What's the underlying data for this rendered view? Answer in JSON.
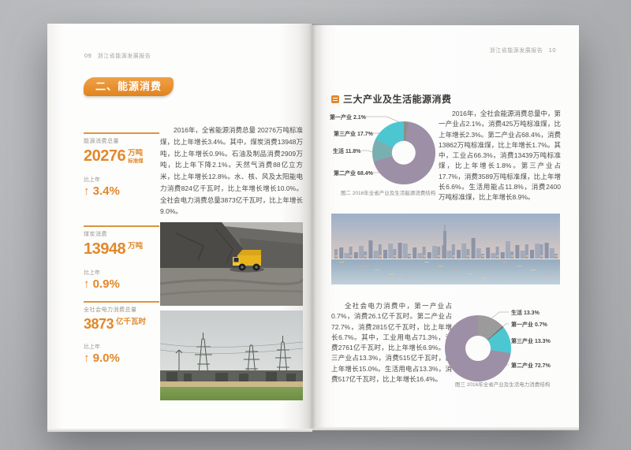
{
  "colors": {
    "accent_orange": "#e2882a",
    "donut_purple": "#9d8fa5",
    "donut_cyan": "#4cc7d2",
    "donut_teal_gray": "#7aafb2",
    "donut_gray": "#9b9b9b"
  },
  "left_page": {
    "header": {
      "page_num": "09",
      "title": "浙江省能源发展报告"
    },
    "section_badge": "二、能源消费",
    "stats": [
      {
        "label": "能源消费总量",
        "value": "20276",
        "unit": "万吨",
        "unit_sub": "标准煤",
        "change_label": "比上年",
        "arrow": "↑",
        "change": "3.4%"
      },
      {
        "label": "煤炭消费",
        "value": "13948",
        "unit": "万吨",
        "unit_sub": "",
        "change_label": "比上年",
        "arrow": "↑",
        "change": "0.9%"
      },
      {
        "label": "全社会电力消费总量",
        "value": "3873",
        "unit": "亿千瓦时",
        "unit_sub": "",
        "change_label": "比上年",
        "arrow": "↑",
        "change": "9.0%"
      }
    ],
    "paragraph": "2016年，全省能源消费总量 20276万吨标准煤，比上年增长3.4%。其中，煤炭消费13948万吨，比上年增长0.9%。石油及制品消费2909万吨，比上年下降2.1%。天然气消费88亿立方米，比上年增长12.8%。水、核、风及太阳能电力消费824亿千瓦时，比上年增长增长10.0%。全社会电力消费总量3873亿千瓦时，比上年增长9.0%。",
    "photos": [
      {
        "name": "coal-mine-dump-truck"
      },
      {
        "name": "power-transmission-substation"
      }
    ]
  },
  "right_page": {
    "header": {
      "title": "浙江省能源发展报告",
      "page_num": "10"
    },
    "section_title": "三大产业及生活能源消费",
    "paragraph1": "2016年，全社会能源消费总量中，第一产业占2.1%，消费425万吨标准煤，比上年增长2.3%。第二产业占68.4%，消费13862万吨标准煤，比上年增长1.7%。其中，工业占66.3%，消费13439万吨标准煤，比上年增长1.8%。第三产业占17.7%，消费3589万吨标准煤，比上年增长6.6%。生活用能占11.8%，消费2400万吨标准煤，比上年增长8.9%。",
    "paragraph2": "全社会电力消费中，第一产业占0.7%，消费26.1亿千瓦时。第二产业占72.7%，消费2815亿千瓦时，比上年增长6.7%。其中，工业用电占71.3%，消费2761亿千瓦时，比上年增长6.9%。第三产业占13.3%，消费515亿千瓦时，比上年增长15.0%。生活用电占13.3%，消费517亿千瓦时，比上年增长16.4%。",
    "chart1": {
      "caption": "图二 2016年全省产业及生活能源消费结构",
      "labels": [
        "第一产业 2.1%",
        "第三产业 17.7%",
        "生活 11.8%",
        "第二产业 68.4%"
      ]
    },
    "chart2": {
      "caption": "图三 2016年全省产业及生活电力消费结构",
      "labels": [
        "生活 13.3%",
        "第一产业 0.7%",
        "第三产业 13.3%",
        "第二产业 72.7%"
      ]
    },
    "photo": {
      "name": "city-skyline-waterfront"
    }
  },
  "chart_data": [
    {
      "type": "pie",
      "title": "图二 2016年全省产业及生活能源消费结构",
      "unit": "%",
      "hole": 0.38,
      "legend_position": "left",
      "segments": [
        {
          "label": "第一产业",
          "value": 2.1,
          "color": "#8d8d8d"
        },
        {
          "label": "第二产业",
          "value": 68.4,
          "color": "#9d8fa5"
        },
        {
          "label": "生活",
          "value": 11.8,
          "color": "#7aafb2"
        },
        {
          "label": "第三产业",
          "value": 17.7,
          "color": "#4cc7d2"
        }
      ]
    },
    {
      "type": "pie",
      "title": "图三 2016年全省产业及生活电力消费结构",
      "unit": "%",
      "hole": 0.38,
      "legend_position": "right",
      "segments": [
        {
          "label": "生活",
          "value": 13.3,
          "color": "#9b9b9b"
        },
        {
          "label": "第一产业",
          "value": 0.7,
          "color": "#6f6f6f"
        },
        {
          "label": "第三产业",
          "value": 13.3,
          "color": "#4cc7d2"
        },
        {
          "label": "第二产业",
          "value": 72.7,
          "color": "#9d8fa5"
        }
      ]
    }
  ]
}
